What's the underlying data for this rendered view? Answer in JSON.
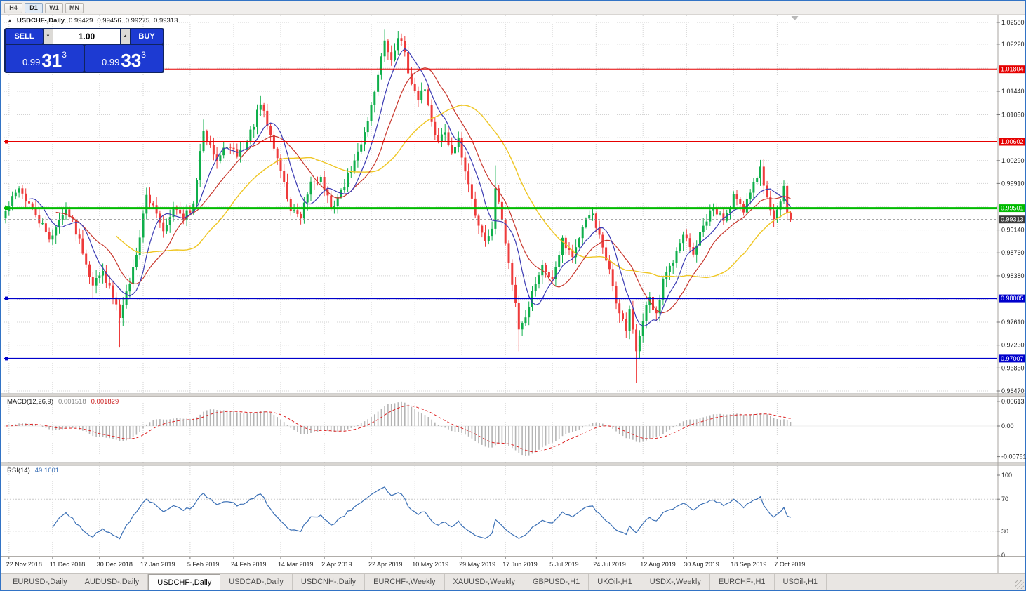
{
  "window": {
    "border_color": "#3273c5"
  },
  "toolbar": {
    "timeframes": [
      "H4",
      "D1",
      "W1",
      "MN"
    ],
    "active_timeframe": "D1"
  },
  "chart_header": {
    "collapse_icon": "▲",
    "symbol_period": "USDCHF-,Daily",
    "open": "0.99429",
    "high": "0.99456",
    "low": "0.99275",
    "close": "0.99313"
  },
  "trade_panel": {
    "sell_label": "SELL",
    "buy_label": "BUY",
    "volume": "1.00",
    "spin_up_icon": "▲",
    "spin_down_icon": "▼",
    "bid": {
      "prefix": "0.99",
      "big": "31",
      "sup": "3"
    },
    "ask": {
      "prefix": "0.99",
      "big": "33",
      "sup": "3"
    }
  },
  "indicators": {
    "macd": {
      "name": "MACD(12,26,9)",
      "main_value": "0.001518",
      "signal_value": "0.001829"
    },
    "rsi": {
      "name": "RSI(14)",
      "value": "49.1601"
    }
  },
  "axes": {
    "price_ticks": [
      "1.02580",
      "1.02220",
      "1.01440",
      "1.01050",
      "1.00290",
      "0.99910",
      "0.99140",
      "0.98760",
      "0.98380",
      "0.97610",
      "0.97230",
      "0.96850",
      "0.96470"
    ],
    "grid_prices": [
      1.0258,
      1.0222,
      1.0182,
      1.0144,
      1.0105,
      1.0067,
      1.0029,
      0.9991,
      0.9952,
      0.9914,
      0.9876,
      0.9838,
      0.9799,
      0.9761,
      0.9723,
      0.9685,
      0.9647
    ],
    "date_ticks": [
      "22 Nov 2018",
      "11 Dec 2018",
      "30 Dec 2018",
      "17 Jan 2019",
      "5 Feb 2019",
      "24 Feb 2019",
      "14 Mar 2019",
      "2 Apr 2019",
      "22 Apr 2019",
      "10 May 2019",
      "29 May 2019",
      "17 Jun 2019",
      "5 Jul 2019",
      "24 Jul 2019",
      "12 Aug 2019",
      "30 Aug 2019",
      "18 Sep 2019",
      "7 Oct 2019"
    ],
    "macd_axis": [
      "0.00613",
      "0.00",
      "-0.00761"
    ],
    "rsi_axis": [
      "100",
      "70",
      "30",
      "0"
    ],
    "rsi_levels": [
      70,
      30
    ]
  },
  "overlays": {
    "hlines": [
      {
        "price": 1.01804,
        "label": "1.01804",
        "color": "#e60000",
        "width": 2
      },
      {
        "price": 1.00602,
        "label": "1.00602",
        "color": "#e60000",
        "width": 2
      },
      {
        "price": 0.99501,
        "label": "0.99501",
        "color": "#00bb00",
        "width": 3
      },
      {
        "price": 0.98005,
        "label": "0.98005",
        "color": "#0000cc",
        "width": 2
      },
      {
        "price": 0.97007,
        "label": "0.97007",
        "color": "#0000cc",
        "width": 2
      }
    ],
    "current_price": {
      "value": 0.99313,
      "label": "0.99313",
      "badge_color": "#3a3a3a",
      "line_color": "#8a8a8a"
    }
  },
  "tabs": {
    "items": [
      "EURUSD-,Daily",
      "AUDUSD-,Daily",
      "USDCHF-,Daily",
      "USDCAD-,Daily",
      "USDCNH-,Daily",
      "EURCHF-,Weekly",
      "XAUUSD-,Weekly",
      "GBPUSD-,H1",
      "UKOil-,H1",
      "USDX-,Weekly",
      "EURCHF-,H1",
      "USOil-,H1"
    ],
    "active_index": 2
  },
  "chart_data": {
    "type": "candlestick",
    "symbol": "USDCHF-",
    "period": "Daily",
    "num_candles": 235,
    "price_range": [
      0.9647,
      1.0258
    ],
    "keyframes": [
      [
        0,
        0.9945
      ],
      [
        4,
        0.9983
      ],
      [
        9,
        0.9938
      ],
      [
        13,
        0.9898
      ],
      [
        18,
        0.9948
      ],
      [
        22,
        0.99
      ],
      [
        26,
        0.9822
      ],
      [
        29,
        0.9846
      ],
      [
        32,
        0.9802
      ],
      [
        34,
        0.9768
      ],
      [
        36,
        0.9812
      ],
      [
        39,
        0.9872
      ],
      [
        42,
        0.9972
      ],
      [
        45,
        0.9941
      ],
      [
        47,
        0.9912
      ],
      [
        50,
        0.9952
      ],
      [
        53,
        0.9931
      ],
      [
        56,
        0.9958
      ],
      [
        59,
        1.0078
      ],
      [
        61,
        1.0055
      ],
      [
        63,
        1.0028
      ],
      [
        66,
        1.0052
      ],
      [
        69,
        1.0036
      ],
      [
        72,
        1.0061
      ],
      [
        76,
        1.0122
      ],
      [
        79,
        1.0071
      ],
      [
        82,
        1.0012
      ],
      [
        85,
        0.9946
      ],
      [
        88,
        0.9933
      ],
      [
        91,
        0.9994
      ],
      [
        94,
        1.0002
      ],
      [
        97,
        0.9949
      ],
      [
        100,
        0.998
      ],
      [
        103,
        1.0011
      ],
      [
        106,
        1.0056
      ],
      [
        109,
        1.0121
      ],
      [
        111,
        1.0171
      ],
      [
        113,
        1.0228
      ],
      [
        115,
        1.0196
      ],
      [
        117,
        1.0232
      ],
      [
        119,
        1.0209
      ],
      [
        121,
        1.0156
      ],
      [
        123,
        1.0129
      ],
      [
        125,
        1.0147
      ],
      [
        127,
        1.0093
      ],
      [
        129,
        1.0061
      ],
      [
        131,
        1.0076
      ],
      [
        133,
        1.0041
      ],
      [
        135,
        1.0067
      ],
      [
        137,
        1.0011
      ],
      [
        139,
        0.9966
      ],
      [
        141,
        0.9921
      ],
      [
        143,
        0.9896
      ],
      [
        145,
        0.9916
      ],
      [
        146,
        0.9983
      ],
      [
        148,
        0.9931
      ],
      [
        150,
        0.9859
      ],
      [
        152,
        0.9793
      ],
      [
        153,
        0.9749
      ],
      [
        155,
        0.9769
      ],
      [
        157,
        0.9813
      ],
      [
        160,
        0.9856
      ],
      [
        163,
        0.9833
      ],
      [
        166,
        0.9901
      ],
      [
        169,
        0.9869
      ],
      [
        172,
        0.9919
      ],
      [
        175,
        0.9941
      ],
      [
        177,
        0.9906
      ],
      [
        179,
        0.9863
      ],
      [
        181,
        0.9821
      ],
      [
        183,
        0.9776
      ],
      [
        185,
        0.9746
      ],
      [
        186,
        0.9783
      ],
      [
        188,
        0.9713
      ],
      [
        190,
        0.9763
      ],
      [
        192,
        0.9803
      ],
      [
        194,
        0.9776
      ],
      [
        196,
        0.9833
      ],
      [
        199,
        0.9859
      ],
      [
        202,
        0.9906
      ],
      [
        205,
        0.9873
      ],
      [
        208,
        0.9921
      ],
      [
        211,
        0.9949
      ],
      [
        214,
        0.9929
      ],
      [
        217,
        0.9973
      ],
      [
        220,
        0.9943
      ],
      [
        223,
        0.9993
      ],
      [
        225,
        1.0019
      ],
      [
        227,
        0.9969
      ],
      [
        229,
        0.9932
      ],
      [
        231,
        0.9961
      ],
      [
        232,
        0.9987
      ],
      [
        233,
        0.9942
      ],
      [
        234,
        0.99313
      ]
    ],
    "wick_lows": {
      "26": 0.9801,
      "34": 0.9719,
      "153": 0.9713,
      "183": 0.976,
      "188": 0.966
    },
    "wick_highs": {
      "59": 1.0097,
      "76": 1.0136,
      "113": 1.0246,
      "117": 1.0244,
      "146": 1.0021,
      "225": 1.003,
      "232": 0.9996
    },
    "last_candle": {
      "open": 0.99429,
      "high": 0.99456,
      "low": 0.99275,
      "close": 0.99313
    },
    "ma_periods": {
      "fast": 8,
      "mid": 16,
      "slow": 34
    },
    "colors": {
      "up": "#0faf4b",
      "down": "#ee3b3b",
      "ma_fast": "#3b3bb3",
      "ma_mid": "#c8372d",
      "ma_slow": "#efc623",
      "macd_hist": "#b4b4b4",
      "macd_signal": "#d22",
      "rsi_line": "#3a6fb5",
      "grid": "#d2d2d2"
    },
    "macd_params": [
      12,
      26,
      9
    ],
    "rsi_period": 14
  }
}
